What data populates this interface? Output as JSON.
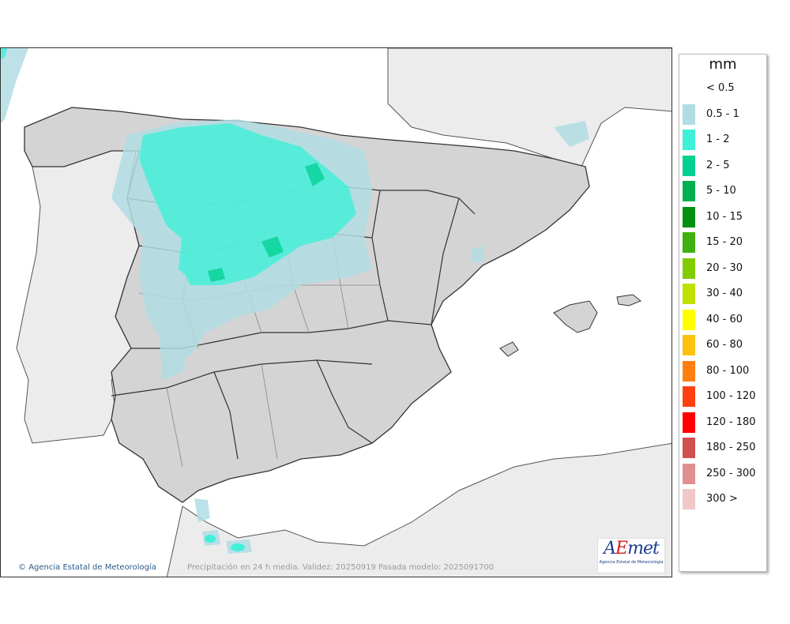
{
  "legend": {
    "title": "mm",
    "entries": [
      {
        "label": "< 0.5",
        "color": "#ffffff"
      },
      {
        "label": "0.5 - 1",
        "color": "#b0dde4"
      },
      {
        "label": "1 - 2",
        "color": "#40f0d8"
      },
      {
        "label": "2 - 5",
        "color": "#00d090"
      },
      {
        "label": "5 - 10",
        "color": "#00b050"
      },
      {
        "label": "10 - 15",
        "color": "#009010"
      },
      {
        "label": "15 - 20",
        "color": "#40b010"
      },
      {
        "label": "20 - 30",
        "color": "#80cc00"
      },
      {
        "label": "30 - 40",
        "color": "#c0e000"
      },
      {
        "label": "40 - 60",
        "color": "#ffff00"
      },
      {
        "label": "60 - 80",
        "color": "#ffc010"
      },
      {
        "label": "80 - 100",
        "color": "#ff8010"
      },
      {
        "label": "100 - 120",
        "color": "#ff4010"
      },
      {
        "label": "120 - 180",
        "color": "#ff0000"
      },
      {
        "label": "180 - 250",
        "color": "#d05050"
      },
      {
        "label": "250 - 300",
        "color": "#e09090"
      },
      {
        "label": "300 >",
        "color": "#f0c8c8"
      }
    ]
  },
  "map": {
    "credit": "Agencia Estatal de Meteorología",
    "caption": "Precipitación en 24 h media. Validez: 20250919 Pasada modelo: 2025091700",
    "logo_main": "AEmet",
    "logo_sub": "Agencia Estatal de Meteorología",
    "colors": {
      "sea": "#ffffff",
      "land": "#d4d4d4",
      "foreign_land": "#ececec",
      "border": "#333333"
    }
  }
}
